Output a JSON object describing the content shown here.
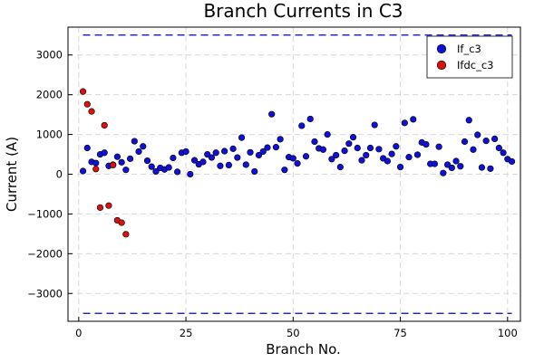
{
  "chart_data": {
    "type": "scatter",
    "title": "Branch Currents in C3",
    "xlabel": "Branch No.",
    "ylabel": "Current (A)",
    "xlim": [
      -2.5,
      103
    ],
    "ylim": [
      -3700,
      3700
    ],
    "xticks": [
      0,
      25,
      50,
      75,
      100
    ],
    "yticks": [
      -3000,
      -2000,
      -1000,
      0,
      1000,
      2000,
      3000
    ],
    "grid": true,
    "legend_position": "top-right",
    "limit_lines": {
      "values": [
        3500,
        -3500
      ],
      "color": "#0000cc"
    },
    "series": [
      {
        "name": "If_c3",
        "color": "#1010d8",
        "x": [
          1,
          2,
          3,
          4,
          5,
          6,
          7,
          8,
          9,
          10,
          11,
          12,
          13,
          14,
          15,
          16,
          17,
          18,
          19,
          20,
          21,
          22,
          23,
          24,
          25,
          26,
          27,
          28,
          29,
          30,
          31,
          32,
          33,
          34,
          35,
          36,
          37,
          38,
          39,
          40,
          41,
          42,
          43,
          44,
          45,
          46,
          47,
          48,
          49,
          50,
          51,
          52,
          53,
          54,
          55,
          56,
          57,
          58,
          59,
          60,
          61,
          62,
          63,
          64,
          65,
          66,
          67,
          68,
          69,
          70,
          71,
          72,
          73,
          74,
          75,
          76,
          77,
          78,
          79,
          80,
          81,
          82,
          83,
          84,
          85,
          86,
          87,
          88,
          89,
          90,
          91,
          92,
          93,
          94,
          95,
          96,
          97,
          98,
          99,
          100,
          101
        ],
        "y": [
          80,
          660,
          310,
          280,
          500,
          540,
          210,
          240,
          440,
          300,
          110,
          390,
          830,
          570,
          700,
          340,
          190,
          70,
          160,
          120,
          170,
          410,
          60,
          540,
          570,
          0,
          350,
          250,
          310,
          500,
          420,
          540,
          210,
          580,
          230,
          640,
          420,
          920,
          240,
          550,
          70,
          480,
          570,
          670,
          1510,
          680,
          880,
          110,
          430,
          400,
          270,
          1220,
          450,
          1390,
          820,
          650,
          620,
          1000,
          380,
          480,
          180,
          590,
          770,
          930,
          660,
          350,
          480,
          660,
          1240,
          630,
          400,
          330,
          510,
          700,
          180,
          1290,
          430,
          1380,
          490,
          800,
          750,
          260,
          260,
          690,
          30,
          240,
          160,
          330,
          200,
          820,
          1360,
          620,
          990,
          170,
          840,
          140,
          890,
          660,
          540,
          380,
          320
        ]
      },
      {
        "name": "Ifdc_c3",
        "color": "#dd1010",
        "x": [
          1,
          2,
          3,
          4,
          5,
          6,
          7,
          8,
          9,
          10,
          11
        ],
        "y": [
          2080,
          1760,
          1580,
          130,
          -840,
          1230,
          -790,
          230,
          -1160,
          -1220,
          -1510
        ]
      }
    ]
  }
}
